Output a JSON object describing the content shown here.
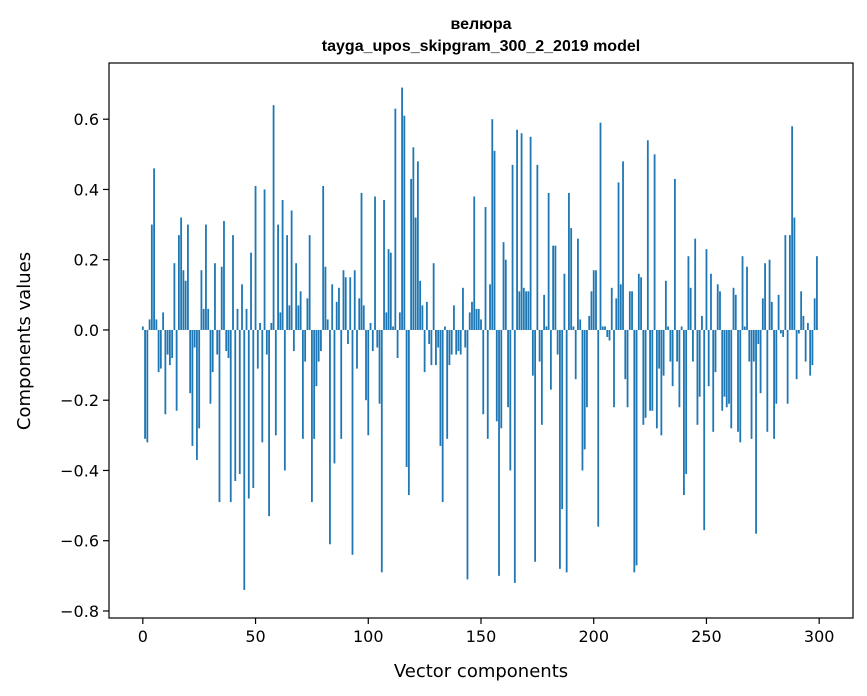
{
  "chart_data": {
    "type": "bar",
    "title": "велюра",
    "subtitle": "tayga_upos_skipgram_300_2_2019 model",
    "xlabel": "Vector components",
    "ylabel": "Components values",
    "xlim": [
      -15,
      315
    ],
    "ylim": [
      -0.82,
      0.76
    ],
    "xticks": [
      0,
      50,
      100,
      150,
      200,
      250,
      300
    ],
    "xtick_labels": [
      "0",
      "50",
      "100",
      "150",
      "200",
      "250",
      "300"
    ],
    "yticks": [
      -0.8,
      -0.6,
      -0.4,
      -0.2,
      0.0,
      0.2,
      0.4,
      0.6
    ],
    "ytick_labels": [
      "−0.8",
      "−0.6",
      "−0.4",
      "−0.2",
      "0.0",
      "0.2",
      "0.4",
      "0.6"
    ],
    "bar_color": "#1f77b4",
    "grid": false,
    "values": [
      0.01,
      -0.31,
      -0.32,
      0.03,
      0.3,
      0.46,
      0.03,
      -0.12,
      -0.11,
      0.05,
      -0.24,
      -0.07,
      -0.1,
      -0.08,
      0.19,
      -0.23,
      0.27,
      0.32,
      0.17,
      0.14,
      0.3,
      -0.18,
      -0.33,
      -0.05,
      -0.37,
      -0.28,
      0.17,
      0.06,
      0.3,
      0.06,
      -0.21,
      -0.12,
      0.19,
      -0.07,
      -0.49,
      0.18,
      0.31,
      -0.06,
      -0.08,
      -0.49,
      0.27,
      -0.43,
      0.06,
      -0.41,
      0.13,
      -0.74,
      0.06,
      -0.48,
      0.22,
      -0.45,
      0.41,
      -0.11,
      0.02,
      -0.32,
      0.4,
      -0.07,
      -0.53,
      0.02,
      0.64,
      -0.3,
      0.3,
      0.05,
      0.37,
      -0.4,
      0.27,
      0.07,
      0.34,
      -0.06,
      0.19,
      0.07,
      0.11,
      -0.31,
      -0.09,
      0.09,
      0.27,
      -0.49,
      -0.31,
      -0.16,
      -0.09,
      -0.06,
      0.41,
      0.18,
      0.03,
      -0.61,
      0.13,
      -0.38,
      0.08,
      0.12,
      -0.31,
      0.17,
      0.15,
      -0.04,
      0.15,
      -0.64,
      0.17,
      -0.11,
      0.09,
      0.39,
      0.07,
      -0.2,
      -0.3,
      0.02,
      -0.06,
      0.38,
      -0.05,
      -0.21,
      -0.69,
      0.37,
      0.05,
      0.23,
      0.22,
      0.01,
      0.63,
      -0.08,
      0.05,
      0.69,
      0.61,
      -0.39,
      -0.47,
      0.43,
      0.52,
      0.32,
      0.48,
      0.14,
      0.07,
      -0.12,
      0.08,
      -0.04,
      -0.1,
      0.19,
      -0.1,
      -0.05,
      -0.33,
      -0.49,
      0.01,
      -0.31,
      -0.1,
      -0.07,
      0.07,
      -0.07,
      -0.06,
      -0.07,
      0.12,
      -0.05,
      -0.71,
      0.05,
      0.08,
      0.38,
      0.06,
      0.06,
      0.03,
      -0.24,
      0.35,
      -0.31,
      0.13,
      0.6,
      0.51,
      -0.26,
      -0.7,
      -0.28,
      0.25,
      0.2,
      -0.22,
      -0.4,
      0.47,
      -0.72,
      0.57,
      0.11,
      0.56,
      0.12,
      0.11,
      0.11,
      0.55,
      -0.13,
      -0.66,
      0.47,
      -0.09,
      -0.27,
      0.1,
      0.01,
      0.39,
      -0.17,
      0.24,
      0.24,
      -0.07,
      -0.68,
      -0.51,
      0.16,
      -0.69,
      0.39,
      0.29,
      0.01,
      -0.14,
      0.26,
      0.03,
      -0.4,
      -0.34,
      -0.22,
      0.04,
      0.11,
      0.17,
      0.17,
      -0.56,
      0.59,
      0.01,
      0.01,
      -0.02,
      -0.03,
      0.12,
      -0.22,
      0.09,
      0.42,
      0.13,
      0.48,
      -0.14,
      -0.22,
      0.11,
      0.11,
      -0.69,
      -0.67,
      0.16,
      0.15,
      -0.27,
      -0.25,
      0.54,
      -0.23,
      -0.23,
      0.5,
      -0.28,
      -0.11,
      -0.3,
      -0.13,
      0.14,
      0.01,
      -0.09,
      -0.16,
      0.43,
      -0.09,
      -0.22,
      0.01,
      -0.47,
      -0.41,
      0.21,
      0.12,
      -0.09,
      0.26,
      -0.27,
      -0.19,
      0.04,
      -0.57,
      0.23,
      -0.16,
      0.16,
      -0.29,
      -0.12,
      0.13,
      0.11,
      -0.23,
      -0.19,
      -0.22,
      -0.21,
      -0.28,
      0.12,
      0.1,
      -0.29,
      -0.32,
      0.21,
      0.01,
      0.18,
      -0.09,
      -0.31,
      -0.09,
      -0.58,
      -0.04,
      -0.18,
      0.09,
      0.19,
      -0.29,
      0.2,
      0.08,
      -0.31,
      -0.21,
      0.1,
      -0.01,
      -0.02,
      0.27,
      -0.21,
      0.27,
      0.58,
      0.32,
      -0.14,
      -0.01,
      0.11,
      0.04,
      -0.09,
      0.02,
      -0.13,
      -0.1,
      0.09,
      0.21
    ]
  }
}
